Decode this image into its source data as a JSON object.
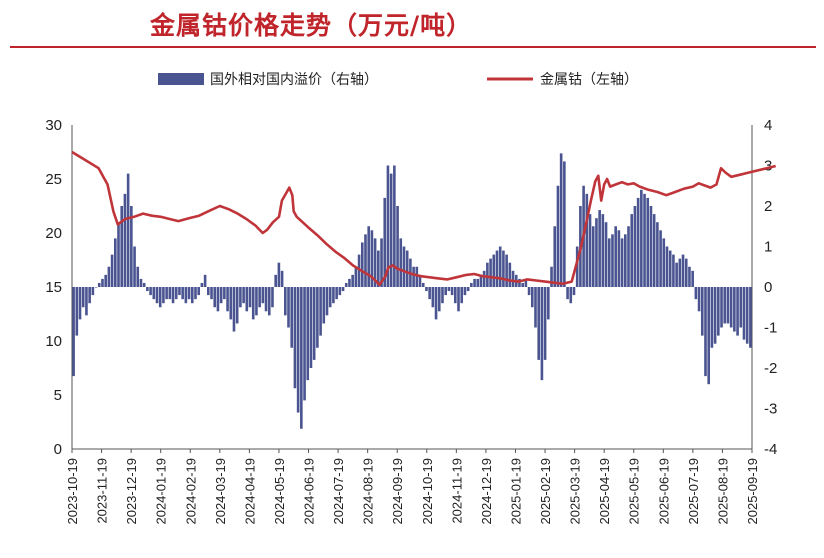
{
  "title": "金属钴价格走势（万元/吨）",
  "colors": {
    "title": "#c0252b",
    "bar": "#4a5490",
    "line": "#c0353a"
  },
  "chart_data": {
    "type": "bar+line",
    "title": "金属钴价格走势（万元/吨）",
    "legend": {
      "placement": "top",
      "entries": [
        "国外相对国内溢价（右轴）",
        "金属钴（左轴）"
      ]
    },
    "y_left": {
      "ylim": [
        0,
        30
      ],
      "ticks": [
        0,
        5,
        10,
        15,
        20,
        25,
        30
      ]
    },
    "y_right": {
      "ylim": [
        -4,
        4
      ],
      "ticks": [
        -4,
        -3,
        -2,
        -1,
        0,
        1,
        2,
        3,
        4
      ]
    },
    "x_ticks": [
      "2023-10-19",
      "2023-11-19",
      "2023-12-19",
      "2024-01-19",
      "2024-02-19",
      "2024-03-19",
      "2024-04-19",
      "2024-05-19",
      "2024-06-19",
      "2024-07-19",
      "2024-08-19",
      "2024-09-19",
      "2024-10-19",
      "2024-11-19",
      "2024-12-19",
      "2025-01-19",
      "2025-02-19",
      "2025-03-19",
      "2025-04-19",
      "2025-05-19",
      "2025-06-19",
      "2025-07-19",
      "2025-08-19",
      "2025-09-19"
    ],
    "series": [
      {
        "name": "国外相对国内溢价（右轴）",
        "axis": "right",
        "type": "bar",
        "values": [
          -2.2,
          -1.2,
          -0.8,
          -0.5,
          -0.7,
          -0.4,
          -0.2,
          0.0,
          0.1,
          0.2,
          0.3,
          0.5,
          0.8,
          1.2,
          1.6,
          2.0,
          2.3,
          2.8,
          2.0,
          1.0,
          0.5,
          0.2,
          0.1,
          -0.1,
          -0.2,
          -0.3,
          -0.4,
          -0.5,
          -0.4,
          -0.3,
          -0.3,
          -0.4,
          -0.3,
          -0.2,
          -0.3,
          -0.4,
          -0.3,
          -0.4,
          -0.3,
          -0.2,
          0.1,
          0.3,
          -0.2,
          -0.3,
          -0.5,
          -0.6,
          -0.4,
          -0.3,
          -0.6,
          -0.8,
          -1.1,
          -0.9,
          -0.5,
          -0.4,
          -0.6,
          -0.5,
          -0.8,
          -0.7,
          -0.5,
          -0.4,
          -0.6,
          -0.7,
          -0.5,
          0.3,
          0.6,
          0.4,
          -0.7,
          -1.0,
          -1.5,
          -2.5,
          -3.1,
          -3.5,
          -2.8,
          -2.3,
          -2.0,
          -1.8,
          -1.5,
          -1.2,
          -0.9,
          -0.7,
          -0.5,
          -0.4,
          -0.3,
          -0.2,
          -0.1,
          0.1,
          0.2,
          0.3,
          0.5,
          0.8,
          1.1,
          1.3,
          1.5,
          1.4,
          1.2,
          0.9,
          1.2,
          2.2,
          3.0,
          2.8,
          3.0,
          2.0,
          1.2,
          1.0,
          0.9,
          0.7,
          0.5,
          0.5,
          0.3,
          0.1,
          -0.1,
          -0.3,
          -0.5,
          -0.8,
          -0.6,
          -0.4,
          -0.2,
          -0.1,
          -0.2,
          -0.4,
          -0.6,
          -0.4,
          -0.2,
          -0.1,
          0.1,
          0.2,
          0.2,
          0.3,
          0.4,
          0.6,
          0.7,
          0.8,
          0.9,
          1.0,
          0.9,
          0.8,
          0.6,
          0.4,
          0.3,
          0.2,
          0.1,
          0.2,
          -0.2,
          -0.5,
          -1.0,
          -1.8,
          -2.3,
          -1.8,
          -0.8,
          0.5,
          1.5,
          2.5,
          3.3,
          3.1,
          -0.3,
          -0.4,
          -0.2,
          1.0,
          2.0,
          2.5,
          2.3,
          1.8,
          1.5,
          1.7,
          1.9,
          1.8,
          1.6,
          1.2,
          1.3,
          1.5,
          1.4,
          1.2,
          1.3,
          1.5,
          1.8,
          2.0,
          2.2,
          2.4,
          2.3,
          2.2,
          2.0,
          1.8,
          1.6,
          1.4,
          1.2,
          1.0,
          0.9,
          0.8,
          0.6,
          0.7,
          0.8,
          0.7,
          0.5,
          0.4,
          -0.3,
          -0.6,
          -1.2,
          -2.2,
          -2.4,
          -1.5,
          -1.4,
          -1.2,
          -1.0,
          -0.9,
          -0.9,
          -1.0,
          -1.1,
          -1.2,
          -1.0,
          -1.3,
          -1.4,
          -1.5
        ]
      },
      {
        "name": "金属钴（左轴）",
        "axis": "left",
        "type": "line",
        "values": [
          [
            0,
            27.5
          ],
          [
            0.3,
            27.0
          ],
          [
            0.9,
            26.0
          ],
          [
            1.2,
            24.5
          ],
          [
            1.4,
            22.0
          ],
          [
            1.55,
            20.8
          ],
          [
            1.65,
            21.0
          ],
          [
            1.8,
            21.3
          ],
          [
            2.1,
            21.5
          ],
          [
            2.4,
            21.8
          ],
          [
            2.7,
            21.6
          ],
          [
            3.0,
            21.5
          ],
          [
            3.3,
            21.3
          ],
          [
            3.6,
            21.1
          ],
          [
            4.0,
            21.4
          ],
          [
            4.3,
            21.6
          ],
          [
            4.6,
            22.0
          ],
          [
            5.0,
            22.5
          ],
          [
            5.3,
            22.2
          ],
          [
            5.6,
            21.8
          ],
          [
            5.9,
            21.3
          ],
          [
            6.2,
            20.7
          ],
          [
            6.45,
            20.0
          ],
          [
            6.6,
            20.3
          ],
          [
            6.8,
            21.0
          ],
          [
            7.0,
            21.5
          ],
          [
            7.1,
            23.0
          ],
          [
            7.35,
            24.2
          ],
          [
            7.45,
            23.5
          ],
          [
            7.5,
            22.0
          ],
          [
            7.6,
            21.5
          ],
          [
            7.8,
            21.0
          ],
          [
            8.0,
            20.5
          ],
          [
            8.3,
            19.8
          ],
          [
            8.6,
            19.0
          ],
          [
            8.9,
            18.3
          ],
          [
            9.2,
            17.7
          ],
          [
            9.5,
            17.0
          ],
          [
            9.8,
            16.5
          ],
          [
            10.1,
            16.0
          ],
          [
            10.3,
            15.5
          ],
          [
            10.4,
            15.2
          ],
          [
            10.6,
            16.0
          ],
          [
            10.7,
            16.8
          ],
          [
            10.85,
            17.0
          ],
          [
            11.0,
            16.7
          ],
          [
            11.2,
            16.5
          ],
          [
            11.5,
            16.2
          ],
          [
            11.8,
            16.0
          ],
          [
            12.1,
            15.9
          ],
          [
            12.4,
            15.8
          ],
          [
            12.7,
            15.7
          ],
          [
            13.0,
            15.9
          ],
          [
            13.3,
            16.1
          ],
          [
            13.6,
            16.2
          ],
          [
            13.9,
            16.0
          ],
          [
            14.2,
            15.9
          ],
          [
            14.5,
            15.8
          ],
          [
            14.8,
            15.6
          ],
          [
            15.1,
            15.5
          ],
          [
            15.4,
            15.7
          ],
          [
            15.7,
            15.6
          ],
          [
            16.0,
            15.5
          ],
          [
            16.3,
            15.4
          ],
          [
            16.6,
            15.3
          ],
          [
            16.9,
            15.5
          ],
          [
            17.0,
            16.5
          ],
          [
            17.2,
            18.5
          ],
          [
            17.4,
            21.0
          ],
          [
            17.55,
            23.0
          ],
          [
            17.7,
            24.8
          ],
          [
            17.8,
            25.3
          ],
          [
            17.9,
            23.0
          ],
          [
            18.0,
            24.5
          ],
          [
            18.1,
            25.0
          ],
          [
            18.2,
            24.3
          ],
          [
            18.4,
            24.5
          ],
          [
            18.6,
            24.7
          ],
          [
            18.8,
            24.5
          ],
          [
            19.0,
            24.6
          ],
          [
            19.2,
            24.3
          ],
          [
            19.5,
            24.0
          ],
          [
            19.8,
            23.8
          ],
          [
            20.1,
            23.5
          ],
          [
            20.4,
            23.8
          ],
          [
            20.7,
            24.1
          ],
          [
            21.0,
            24.3
          ],
          [
            21.2,
            24.6
          ],
          [
            21.4,
            24.4
          ],
          [
            21.6,
            24.2
          ],
          [
            21.8,
            24.5
          ],
          [
            21.95,
            26.0
          ],
          [
            22.1,
            25.6
          ],
          [
            22.3,
            25.2
          ],
          [
            22.6,
            25.4
          ],
          [
            22.9,
            25.6
          ],
          [
            23.2,
            25.8
          ],
          [
            23.5,
            26.0
          ],
          [
            23.8,
            26.2
          ]
        ]
      }
    ]
  }
}
